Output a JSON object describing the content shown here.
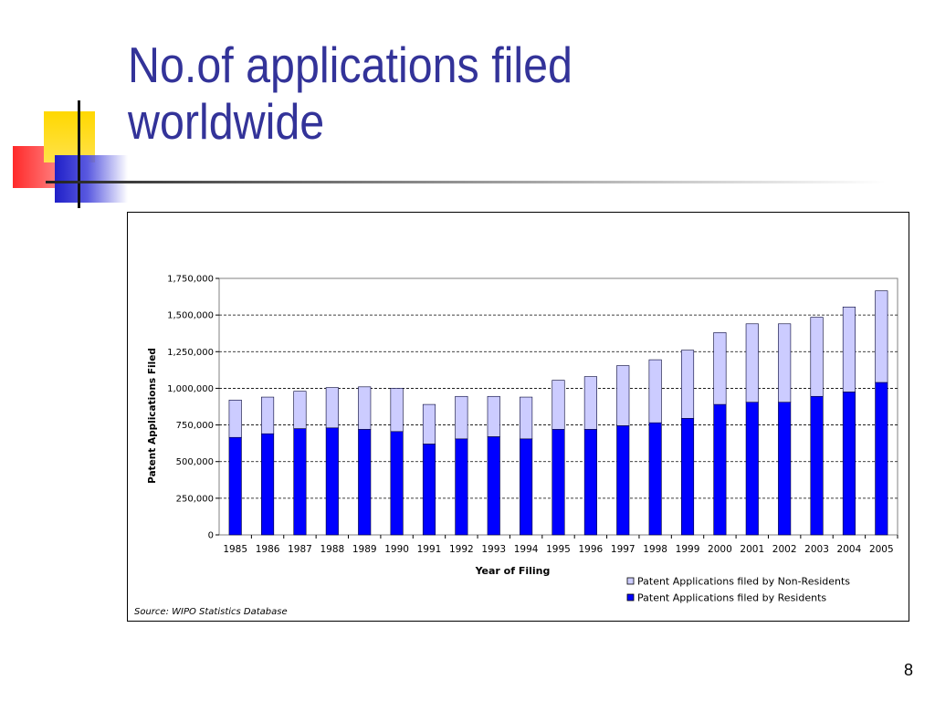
{
  "slide": {
    "title_line1": "No.of applications filed",
    "title_line2": "worldwide",
    "page_number": "8"
  },
  "chart_data": {
    "type": "bar",
    "stacked": true,
    "title": "",
    "xlabel": "Year of Filing",
    "ylabel": "Patent Applications Filed",
    "ylim": [
      0,
      1750000
    ],
    "yticks": [
      0,
      250000,
      500000,
      750000,
      1000000,
      1250000,
      1500000,
      1750000
    ],
    "ytick_labels": [
      "0",
      "250,000",
      "500,000",
      "750,000",
      "1,000,000",
      "1,250,000",
      "1,500,000",
      "1,750,000"
    ],
    "grid": "horizontal dashed",
    "legend_position": "bottom-right",
    "categories": [
      "1985",
      "1986",
      "1987",
      "1988",
      "1989",
      "1990",
      "1991",
      "1992",
      "1993",
      "1994",
      "1995",
      "1996",
      "1997",
      "1998",
      "1999",
      "2000",
      "2001",
      "2002",
      "2003",
      "2004",
      "2005"
    ],
    "series": [
      {
        "name": "Patent Applications filed by Residents",
        "color": "#0000ff",
        "values": [
          665000,
          690000,
          725000,
          730000,
          720000,
          705000,
          620000,
          655000,
          670000,
          655000,
          720000,
          720000,
          745000,
          765000,
          795000,
          890000,
          905000,
          905000,
          945000,
          975000,
          1040000
        ]
      },
      {
        "name": "Patent Applications filed by Non-Residents",
        "color": "#ccccff",
        "values": [
          255000,
          250000,
          255000,
          275000,
          290000,
          295000,
          270000,
          290000,
          275000,
          285000,
          335000,
          360000,
          410000,
          430000,
          465000,
          490000,
          535000,
          535000,
          540000,
          580000,
          625000
        ]
      }
    ],
    "legend_order": [
      1,
      0
    ],
    "source_note": "Source: WIPO Statistics Database"
  }
}
